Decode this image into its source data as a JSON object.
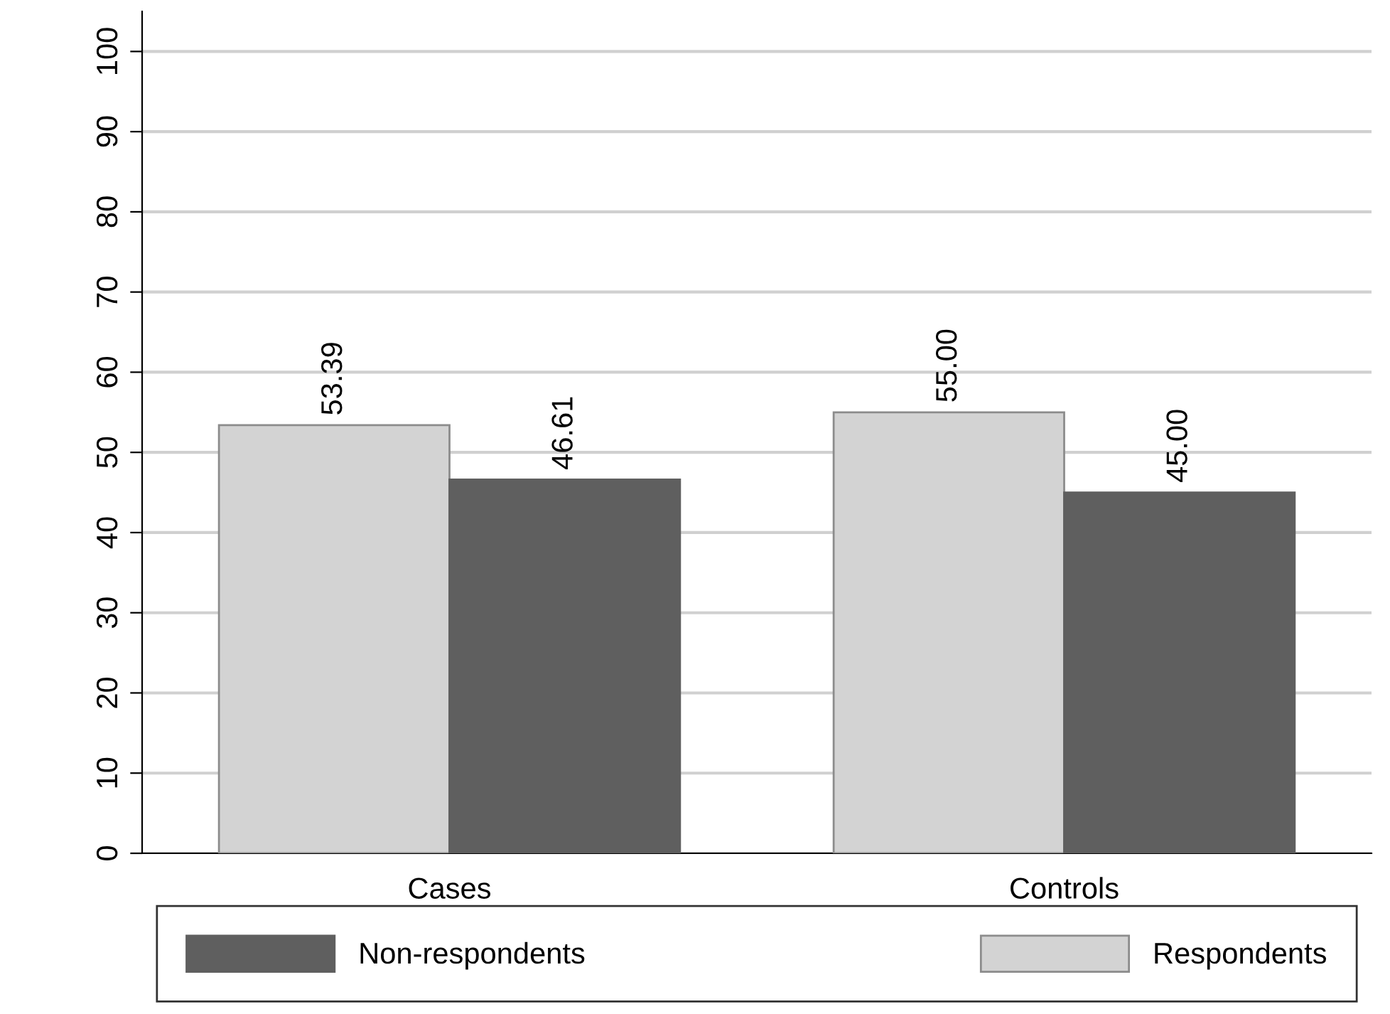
{
  "chart_data": {
    "type": "bar",
    "categories": [
      "Cases",
      "Controls"
    ],
    "series": [
      {
        "name": "Respondents",
        "color": "#d3d3d3",
        "values": [
          53.39,
          55.0
        ],
        "value_labels": [
          "53.39",
          "55.00"
        ]
      },
      {
        "name": "Non-respondents",
        "color": "#5f5f5f",
        "values": [
          46.61,
          45.0
        ],
        "value_labels": [
          "46.61",
          "45.00"
        ]
      }
    ],
    "ylim": [
      0,
      105
    ],
    "yticks": [
      0,
      10,
      20,
      30,
      40,
      50,
      60,
      70,
      80,
      90,
      100
    ],
    "grid": "y",
    "legend": "bottom"
  }
}
